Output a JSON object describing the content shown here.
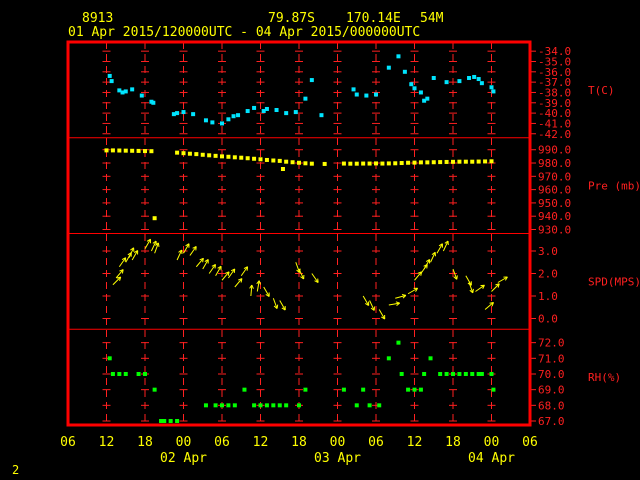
{
  "header": {
    "station": "8913",
    "lat": "79.87S",
    "lon": "170.14E",
    "elev": "54M",
    "range": "01 Apr 2015/120000UTC - 04 Apr 2015/000000UTC"
  },
  "page_number": "2",
  "colors": {
    "frame": "#ff0000",
    "axis": "#ff2020",
    "label": "#ffff00",
    "temp": "#00e5ff",
    "pressure": "#ffff00",
    "wind": "#ffff00",
    "rh": "#00ff00"
  },
  "chart_data": {
    "type": "scatter",
    "x_unit": "hours since 01 Apr 2015 00 UTC",
    "xlim": [
      6,
      78
    ],
    "x_tick_labels": [
      "06",
      "12",
      "18",
      "00",
      "06",
      "12",
      "18",
      "00",
      "06",
      "12",
      "18",
      "00",
      "06"
    ],
    "date_labels": [
      "02 Apr",
      "03 Apr",
      "04 Apr"
    ],
    "panels": [
      {
        "key": "temp",
        "label": "T(C)",
        "ylim": [
          -42,
          -33.5
        ],
        "ticks": [
          "-34.0",
          "-35.0",
          "-36.0",
          "-37.0",
          "-38.0",
          "-39.0",
          "-40.0",
          "-41.0",
          "-42.0"
        ],
        "tick_values": [
          -34,
          -35,
          -36,
          -37,
          -38,
          -39,
          -40,
          -41,
          -42
        ],
        "points": [
          [
            12.5,
            -36.4
          ],
          [
            12.8,
            -36.9
          ],
          [
            14,
            -37.8
          ],
          [
            14.5,
            -38.0
          ],
          [
            15,
            -37.9
          ],
          [
            16,
            -37.7
          ],
          [
            17.5,
            -38.3
          ],
          [
            19,
            -38.9
          ],
          [
            19.3,
            -39.0
          ],
          [
            22.5,
            -40.1
          ],
          [
            23,
            -40.0
          ],
          [
            24,
            -39.9
          ],
          [
            25.5,
            -40.1
          ],
          [
            27.5,
            -40.7
          ],
          [
            28.5,
            -40.9
          ],
          [
            30,
            -41.0
          ],
          [
            31,
            -40.6
          ],
          [
            31.8,
            -40.3
          ],
          [
            32.5,
            -40.2
          ],
          [
            34,
            -39.8
          ],
          [
            35,
            -39.5
          ],
          [
            36.5,
            -39.8
          ],
          [
            37,
            -39.6
          ],
          [
            38.5,
            -39.7
          ],
          [
            40,
            -40.0
          ],
          [
            41.5,
            -39.9
          ],
          [
            43,
            -38.6
          ],
          [
            44,
            -36.8
          ],
          [
            45.5,
            -40.2
          ],
          [
            50.5,
            -37.7
          ],
          [
            51,
            -38.2
          ],
          [
            52.5,
            -38.3
          ],
          [
            54,
            -38.2
          ],
          [
            56,
            -35.6
          ],
          [
            57.5,
            -34.5
          ],
          [
            58.5,
            -36.0
          ],
          [
            59.5,
            -37.2
          ],
          [
            60,
            -37.6
          ],
          [
            61,
            -38.0
          ],
          [
            61.5,
            -38.8
          ],
          [
            62,
            -38.6
          ],
          [
            63,
            -36.6
          ],
          [
            65,
            -37.0
          ],
          [
            67,
            -36.9
          ],
          [
            68.5,
            -36.6
          ],
          [
            69.3,
            -36.5
          ],
          [
            70,
            -36.7
          ],
          [
            70.5,
            -37.1
          ],
          [
            72,
            -37.5
          ],
          [
            72.3,
            -37.9
          ]
        ]
      },
      {
        "key": "pressure",
        "label": "Pre (mb)",
        "ylim": [
          930,
          996
        ],
        "ticks": [
          "990.0",
          "980.0",
          "970.0",
          "960.0",
          "950.0",
          "940.0",
          "930.0"
        ],
        "tick_values": [
          990,
          980,
          970,
          960,
          950,
          940,
          930
        ],
        "points": [
          [
            12,
            989.5
          ],
          [
            13,
            989.5
          ],
          [
            14,
            989.4
          ],
          [
            15,
            989.3
          ],
          [
            16,
            989.2
          ],
          [
            17,
            989.1
          ],
          [
            18,
            989.0
          ],
          [
            19,
            988.9
          ],
          [
            19.5,
            938.5
          ],
          [
            23,
            987.8
          ],
          [
            24,
            987.4
          ],
          [
            25,
            987.0
          ],
          [
            26,
            986.7
          ],
          [
            27,
            986.2
          ],
          [
            28,
            985.8
          ],
          [
            29,
            985.4
          ],
          [
            30,
            985.0
          ],
          [
            31,
            984.7
          ],
          [
            32,
            984.3
          ],
          [
            33,
            984.0
          ],
          [
            34,
            983.6
          ],
          [
            35,
            983.2
          ],
          [
            36,
            982.8
          ],
          [
            37,
            982.3
          ],
          [
            38,
            981.9
          ],
          [
            39,
            981.6
          ],
          [
            39.5,
            975.5
          ],
          [
            40,
            981.0
          ],
          [
            41,
            980.6
          ],
          [
            42,
            980.2
          ],
          [
            43,
            979.8
          ],
          [
            44,
            979.5
          ],
          [
            46,
            979.3
          ],
          [
            49,
            979.6
          ],
          [
            50,
            979.5
          ],
          [
            51,
            979.5
          ],
          [
            52,
            979.6
          ],
          [
            53,
            979.6
          ],
          [
            54,
            979.7
          ],
          [
            55,
            979.6
          ],
          [
            56,
            979.7
          ],
          [
            57,
            979.8
          ],
          [
            58,
            980.0
          ],
          [
            59,
            980.2
          ],
          [
            60,
            980.3
          ],
          [
            61,
            980.5
          ],
          [
            62,
            980.5
          ],
          [
            63,
            980.6
          ],
          [
            64,
            980.7
          ],
          [
            65,
            980.8
          ],
          [
            66,
            980.9
          ],
          [
            67,
            981.0
          ],
          [
            68,
            981.0
          ],
          [
            69,
            981.0
          ],
          [
            70,
            981.1
          ],
          [
            71,
            981.2
          ],
          [
            72,
            981.3
          ]
        ]
      },
      {
        "key": "wind",
        "label": "SPD(MPS)",
        "ylim": [
          -0.3,
          3.6
        ],
        "ticks": [
          "3.0",
          "2.0",
          "1.0",
          "0.0"
        ],
        "tick_values": [
          3,
          2,
          1,
          0
        ],
        "arrows": [
          [
            13,
            1.5,
            45
          ],
          [
            13.5,
            1.8,
            40
          ],
          [
            14,
            2.3,
            35
          ],
          [
            15,
            2.5,
            30
          ],
          [
            15.5,
            2.7,
            25
          ],
          [
            16,
            2.6,
            30
          ],
          [
            18,
            3.1,
            30
          ],
          [
            19,
            3.0,
            25
          ],
          [
            19.5,
            2.9,
            20
          ],
          [
            23,
            2.6,
            25
          ],
          [
            24,
            2.9,
            30
          ],
          [
            25,
            2.8,
            35
          ],
          [
            26,
            2.3,
            40
          ],
          [
            27,
            2.2,
            30
          ],
          [
            28,
            2.0,
            35
          ],
          [
            29,
            1.9,
            30
          ],
          [
            30,
            1.7,
            40
          ],
          [
            31,
            1.8,
            35
          ],
          [
            32,
            1.4,
            40
          ],
          [
            33,
            1.9,
            35
          ],
          [
            34.5,
            1.0,
            5
          ],
          [
            35.5,
            1.2,
            10
          ],
          [
            36.5,
            1.4,
            150
          ],
          [
            38,
            0.9,
            160
          ],
          [
            39,
            0.8,
            150
          ],
          [
            41.5,
            2.5,
            160
          ],
          [
            42,
            2.2,
            155
          ],
          [
            44,
            2.0,
            145
          ],
          [
            52,
            1.0,
            150
          ],
          [
            53,
            0.8,
            155
          ],
          [
            54.5,
            0.4,
            150
          ],
          [
            56,
            0.6,
            80
          ],
          [
            57,
            0.9,
            75
          ],
          [
            59,
            1.1,
            60
          ],
          [
            60,
            1.7,
            40
          ],
          [
            61,
            2.0,
            35
          ],
          [
            61.5,
            2.2,
            30
          ],
          [
            62.5,
            2.5,
            25
          ],
          [
            63.5,
            2.9,
            30
          ],
          [
            64.5,
            3.0,
            25
          ],
          [
            66,
            2.2,
            160
          ],
          [
            68,
            1.9,
            150
          ],
          [
            68.5,
            1.6,
            160
          ],
          [
            69.5,
            1.2,
            55
          ],
          [
            71,
            0.4,
            50
          ],
          [
            72,
            1.2,
            45
          ],
          [
            73,
            1.6,
            60
          ]
        ]
      },
      {
        "key": "rh",
        "label": "RH(%)",
        "ylim": [
          67,
          72.6
        ],
        "ticks": [
          "72.0",
          "71.0",
          "70.0",
          "69.0",
          "68.0",
          "67.0"
        ],
        "tick_values": [
          72,
          71,
          70,
          69,
          68,
          67
        ],
        "points": [
          [
            12.5,
            71.0
          ],
          [
            13,
            70.0
          ],
          [
            14,
            70.0
          ],
          [
            15,
            70.0
          ],
          [
            17,
            70.0
          ],
          [
            18,
            70.0
          ],
          [
            19.5,
            69.0
          ],
          [
            20.5,
            67.0
          ],
          [
            21,
            67.0
          ],
          [
            22,
            67.0
          ],
          [
            23,
            67.0
          ],
          [
            27.5,
            68.0
          ],
          [
            29,
            68.0
          ],
          [
            30,
            68.0
          ],
          [
            31,
            68.0
          ],
          [
            32,
            68.0
          ],
          [
            33.5,
            69.0
          ],
          [
            35,
            68.0
          ],
          [
            36,
            68.0
          ],
          [
            37,
            68.0
          ],
          [
            38,
            68.0
          ],
          [
            39,
            68.0
          ],
          [
            40,
            68.0
          ],
          [
            42,
            68.0
          ],
          [
            43,
            69.0
          ],
          [
            49,
            69.0
          ],
          [
            51,
            68.0
          ],
          [
            52,
            69.0
          ],
          [
            53,
            68.0
          ],
          [
            54.5,
            68.0
          ],
          [
            56,
            71.0
          ],
          [
            57.5,
            72.0
          ],
          [
            58,
            70.0
          ],
          [
            59,
            69.0
          ],
          [
            60,
            69.0
          ],
          [
            61,
            69.0
          ],
          [
            61.5,
            70.0
          ],
          [
            62.5,
            71.0
          ],
          [
            64,
            70.0
          ],
          [
            65,
            70.0
          ],
          [
            66,
            70.0
          ],
          [
            67,
            70.0
          ],
          [
            68,
            70.0
          ],
          [
            69,
            70.0
          ],
          [
            70,
            70.0
          ],
          [
            70.5,
            70.0
          ],
          [
            72,
            70.0
          ],
          [
            72.3,
            69.0
          ]
        ]
      }
    ]
  }
}
